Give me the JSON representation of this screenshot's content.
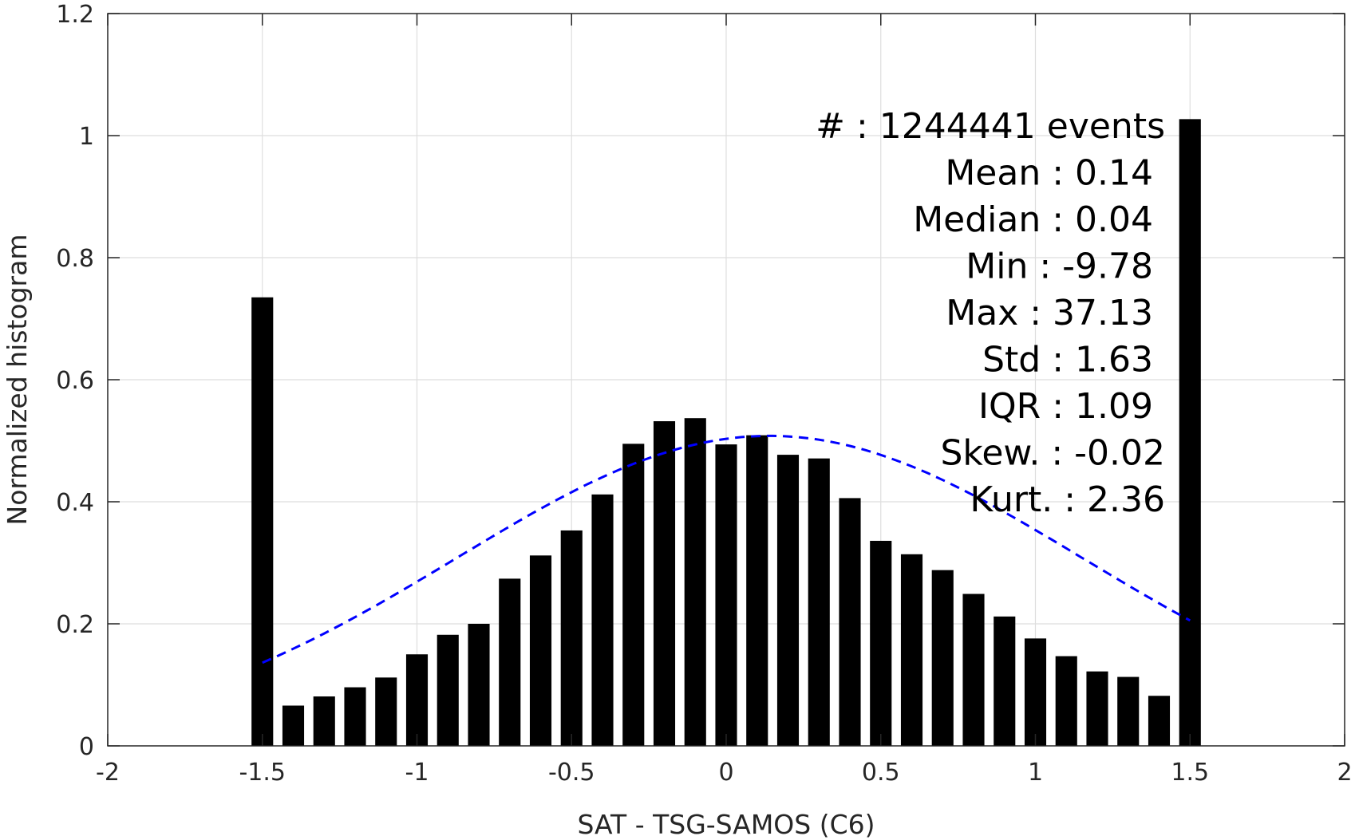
{
  "chart_data": {
    "type": "bar",
    "title": "",
    "xlabel": "SAT - TSG-SAMOS (C6)",
    "ylabel": "Normalized histogram",
    "xlim": [
      -2,
      2
    ],
    "ylim": [
      0,
      1.2
    ],
    "grid": true,
    "xticks": [
      -2,
      -1.5,
      -1,
      -0.5,
      0,
      0.5,
      1,
      1.5,
      2
    ],
    "xtick_labels": [
      "-2",
      "-1.5",
      "-1",
      "-0.5",
      "0",
      "0.5",
      "1",
      "1.5",
      "2"
    ],
    "yticks": [
      0,
      0.2,
      0.4,
      0.6,
      0.8,
      1,
      1.2
    ],
    "ytick_labels": [
      "0",
      "0.2",
      "0.4",
      "0.6",
      "0.8",
      "1",
      "1.2"
    ],
    "bar_width": 0.07,
    "x": [
      -1.5,
      -1.4,
      -1.3,
      -1.2,
      -1.1,
      -1.0,
      -0.9,
      -0.8,
      -0.7,
      -0.6,
      -0.5,
      -0.4,
      -0.3,
      -0.2,
      -0.1,
      0.0,
      0.1,
      0.2,
      0.3,
      0.4,
      0.5,
      0.6,
      0.7,
      0.8,
      0.9,
      1.0,
      1.1,
      1.2,
      1.3,
      1.4,
      1.5
    ],
    "values": [
      0.735,
      0.066,
      0.081,
      0.096,
      0.112,
      0.15,
      0.182,
      0.2,
      0.274,
      0.312,
      0.353,
      0.412,
      0.495,
      0.532,
      0.537,
      0.494,
      0.509,
      0.477,
      0.471,
      0.406,
      0.336,
      0.314,
      0.288,
      0.249,
      0.212,
      0.176,
      0.147,
      0.122,
      0.113,
      0.082,
      1.027
    ],
    "bar_color": "#000000",
    "fit_curve": {
      "style": "dashed",
      "color": "#0000ff",
      "mean": 0.14,
      "std": 1.63,
      "peak": 0.508,
      "x_range": [
        -1.5,
        1.5
      ]
    },
    "stats": [
      {
        "label": "#  ",
        "value": "1244441 events"
      },
      {
        "label": "Mean",
        "value": "0.14"
      },
      {
        "label": "Median",
        "value": "0.04"
      },
      {
        "label": "Min",
        "value": "-9.78"
      },
      {
        "label": "Max",
        "value": "37.13"
      },
      {
        "label": "Std",
        "value": "1.63"
      },
      {
        "label": "IQR",
        "value": "1.09"
      },
      {
        "label": "Skew.",
        "value": "-0.02"
      },
      {
        "label": "Kurt.",
        "value": "2.36"
      }
    ]
  }
}
